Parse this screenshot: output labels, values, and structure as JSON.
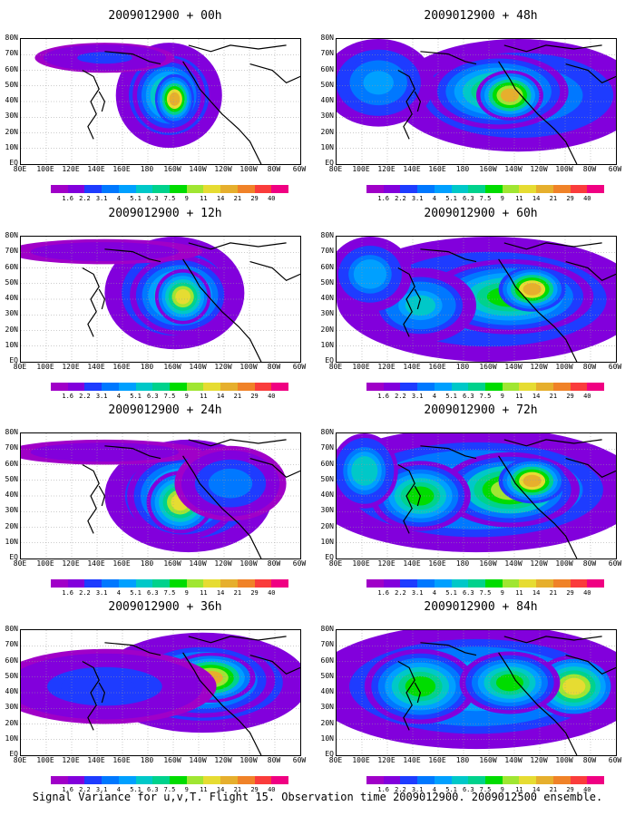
{
  "caption": "Signal Variance for u,v,T. Flight 15. Observation time 2009012900. 2009012500 ensemble.",
  "x_ticks": [
    "80E",
    "100E",
    "120E",
    "140E",
    "160E",
    "180",
    "160W",
    "140W",
    "120W",
    "100W",
    "80W",
    "60W"
  ],
  "y_ticks": [
    "80N",
    "70N",
    "60N",
    "50N",
    "40N",
    "30N",
    "20N",
    "10N",
    "EQ"
  ],
  "colorbar": {
    "levels": [
      "1.6",
      "2.2",
      "3.1",
      "4",
      "5.1",
      "6.3",
      "7.5",
      "9",
      "11",
      "14",
      "21",
      "29",
      "40"
    ],
    "colors": [
      "#a000c8",
      "#8200dc",
      "#1e3cff",
      "#0078ff",
      "#00a0ff",
      "#00c8c8",
      "#00d28c",
      "#00dc00",
      "#a0e632",
      "#e6dc32",
      "#e6af2d",
      "#f08228",
      "#fa3c3c",
      "#f00082"
    ]
  },
  "panels": [
    {
      "title": "2009012900 + 00h",
      "forecast_hour": 0
    },
    {
      "title": "2009012900 + 48h",
      "forecast_hour": 48
    },
    {
      "title": "2009012900 + 12h",
      "forecast_hour": 12
    },
    {
      "title": "2009012900 + 60h",
      "forecast_hour": 60
    },
    {
      "title": "2009012900 + 24h",
      "forecast_hour": 24
    },
    {
      "title": "2009012900 + 72h",
      "forecast_hour": 72
    },
    {
      "title": "2009012900 + 36h",
      "forecast_hour": 36
    },
    {
      "title": "2009012900 + 84h",
      "forecast_hour": 84
    }
  ]
}
